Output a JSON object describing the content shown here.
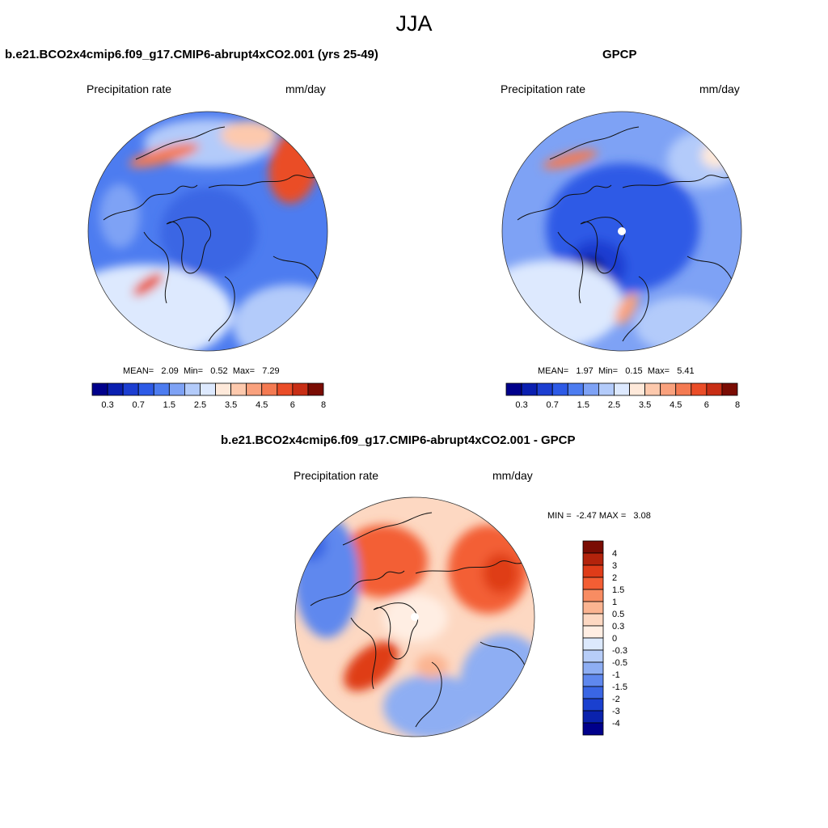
{
  "figure": {
    "title": "JJA"
  },
  "panels": [
    {
      "id": "model",
      "title": "b.e21.BCO2x4cmip6.f09_g17.CMIP6-abrupt4xCO2.001 (yrs 25-49)",
      "variable": "Precipitation rate",
      "units": "mm/day",
      "stats": {
        "mean_label": "MEAN=",
        "mean": "2.09",
        "min_label": "Min=",
        "min": "0.52",
        "max_label": "Max=",
        "max": "7.29"
      }
    },
    {
      "id": "obs",
      "title": "GPCP",
      "variable": "Precipitation rate",
      "units": "mm/day",
      "stats": {
        "mean_label": "MEAN=",
        "mean": "1.97",
        "min_label": "Min=",
        "min": "0.15",
        "max_label": "Max=",
        "max": "5.41"
      }
    },
    {
      "id": "diff",
      "title": "b.e21.BCO2x4cmip6.f09_g17.CMIP6-abrupt4xCO2.001 - GPCP",
      "variable": "Precipitation rate",
      "units": "mm/day",
      "stats": {
        "min_label": "MIN =",
        "min": "-2.47",
        "max_label": "MAX =",
        "max": "3.08"
      }
    }
  ],
  "colorbars": {
    "absolute": {
      "orientation": "horizontal",
      "colors": [
        "#00008b",
        "#0a1fb0",
        "#1c3ed1",
        "#2d5ae6",
        "#4d7cf0",
        "#7ea2f5",
        "#b3cbfa",
        "#dde9fe",
        "#fee9da",
        "#fdc9ad",
        "#f9a17d",
        "#f47a52",
        "#ea4d28",
        "#c82e15",
        "#7a0c03"
      ],
      "tick_labels": [
        "0.3",
        "0.7",
        "1.5",
        "2.5",
        "3.5",
        "4.5",
        "6",
        "8"
      ]
    },
    "difference": {
      "orientation": "vertical",
      "colors": [
        "#7a0c03",
        "#b3230c",
        "#df3c19",
        "#f35e34",
        "#f88c62",
        "#fbb491",
        "#fdd8c2",
        "#ffeee3",
        "#dce9fd",
        "#b7cdf8",
        "#8eaef3",
        "#5f88ee",
        "#3a66e4",
        "#1a40cf",
        "#0a22ad",
        "#00008b"
      ],
      "tick_labels": [
        "4",
        "3",
        "2",
        "1.5",
        "1",
        "0.5",
        "0.3",
        "0",
        "-0.3",
        "-0.5",
        "-1",
        "-1.5",
        "-2",
        "-3",
        "-4"
      ]
    }
  }
}
